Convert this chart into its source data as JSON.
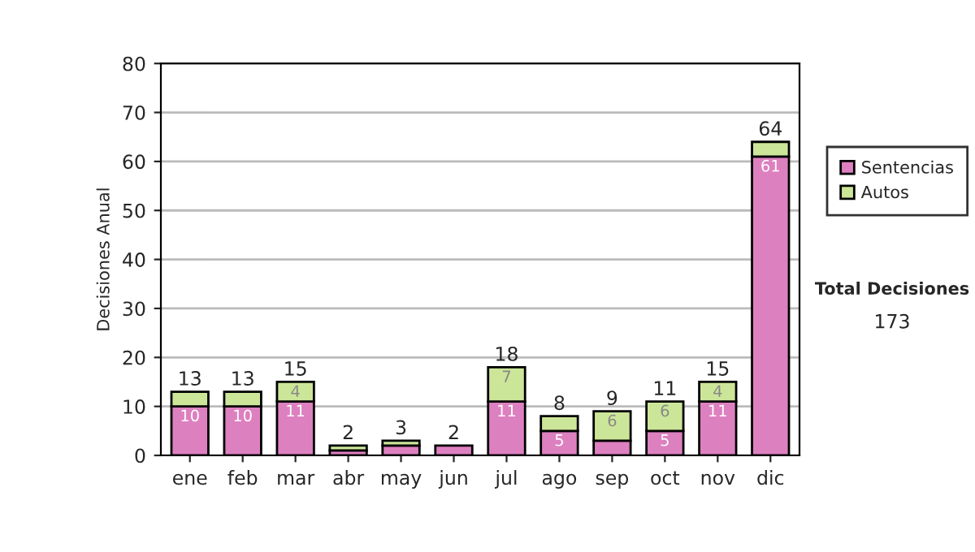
{
  "chart_data": {
    "type": "bar",
    "stacked": true,
    "ylabel": "Decisiones Anual",
    "categories": [
      "ene",
      "feb",
      "mar",
      "abr",
      "may",
      "jun",
      "jul",
      "ago",
      "sep",
      "oct",
      "nov",
      "dic"
    ],
    "series": [
      {
        "name": "Sentencias",
        "color": "#dd80c0",
        "values": [
          10,
          10,
          11,
          1,
          2,
          2,
          11,
          5,
          3,
          5,
          11,
          61
        ],
        "value_labels": [
          "10",
          "10",
          "11",
          null,
          null,
          null,
          "11",
          "5",
          null,
          "5",
          "11",
          "61"
        ]
      },
      {
        "name": "Autos",
        "color": "#cce699",
        "values": [
          3,
          3,
          4,
          1,
          1,
          null,
          7,
          3,
          6,
          6,
          4,
          3
        ],
        "value_labels": [
          null,
          null,
          "4",
          null,
          null,
          null,
          "7",
          null,
          "6",
          "6",
          "4",
          null
        ]
      }
    ],
    "totals": [
      "13",
      "13",
      "15",
      "2",
      "3",
      "2",
      "18",
      "8",
      "9",
      "11",
      "15",
      "64"
    ],
    "ylim": [
      0,
      80
    ],
    "yticks": [
      0,
      10,
      20,
      30,
      40,
      50,
      60,
      70,
      80
    ],
    "grid": "y",
    "legend": "right",
    "annotations": [
      "Total Decisiones",
      "173"
    ]
  }
}
